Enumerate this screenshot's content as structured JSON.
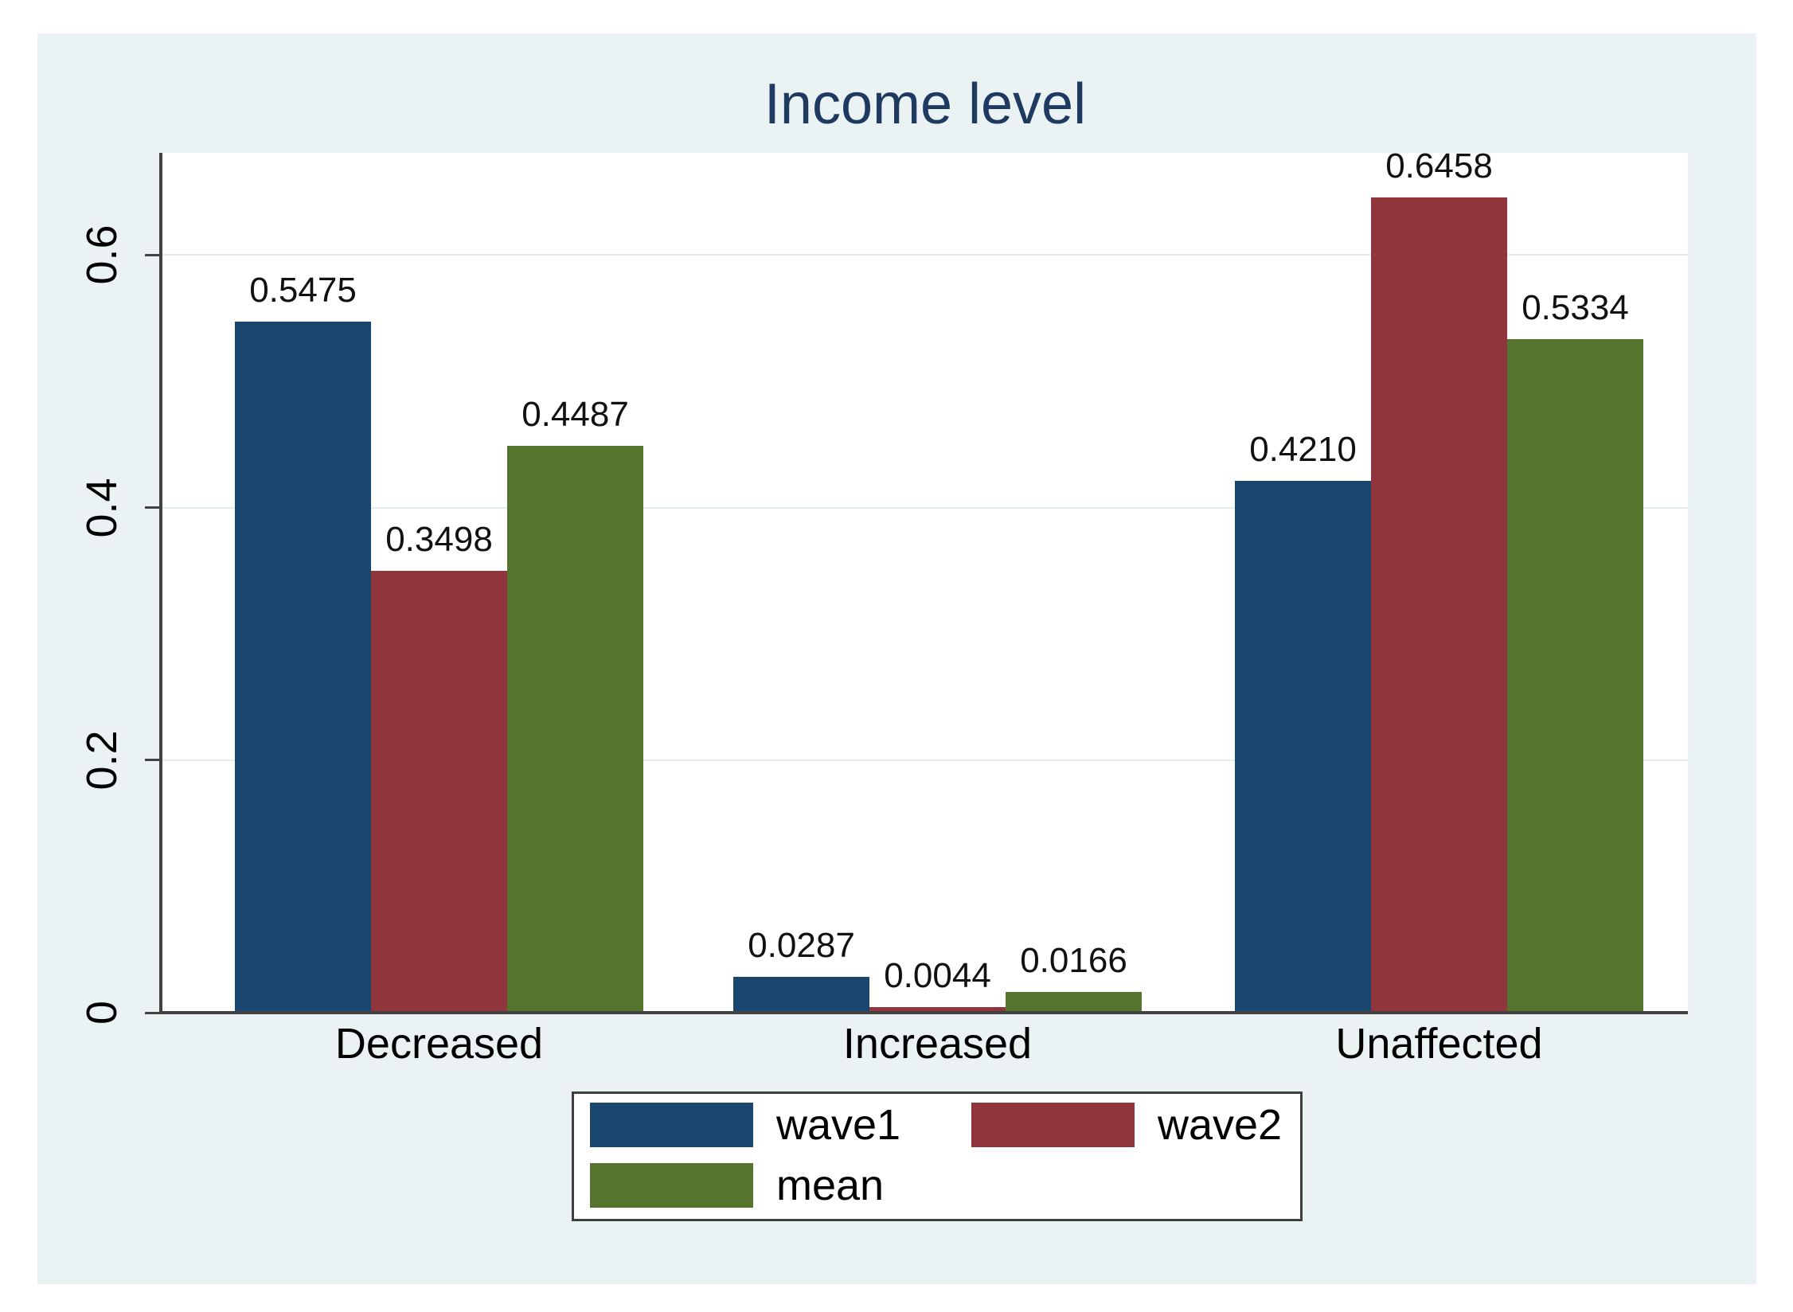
{
  "chart_data": {
    "type": "bar",
    "title": "Income level",
    "categories": [
      "Decreased",
      "Increased",
      "Unaffected"
    ],
    "series": [
      {
        "name": "wave1",
        "color": "#1a476f",
        "values": [
          0.5475,
          0.0287,
          0.421
        ],
        "labels": [
          "0.5475",
          "0.0287",
          "0.4210"
        ]
      },
      {
        "name": "wave2",
        "color": "#90353b",
        "values": [
          0.3498,
          0.0044,
          0.6458
        ],
        "labels": [
          "0.3498",
          "0.0044",
          "0.6458"
        ]
      },
      {
        "name": "mean",
        "color": "#55752f",
        "values": [
          0.4487,
          0.0166,
          0.5334
        ],
        "labels": [
          "0.4487",
          "0.0166",
          "0.5334"
        ]
      }
    ],
    "y_ticks": [
      {
        "value": 0,
        "label": "0"
      },
      {
        "value": 0.2,
        "label": "0.2"
      },
      {
        "value": 0.4,
        "label": "0.4"
      },
      {
        "value": 0.6,
        "label": "0.6"
      }
    ],
    "ylim": [
      0,
      0.681
    ],
    "grid": true,
    "legend_position": "bottom",
    "colors": {
      "canvas_background": "#eaf2f3",
      "plot_background": "#ffffff",
      "title": "#1f3a60",
      "axis": "#424242",
      "gridline": "#e4eef1",
      "text": "#000000"
    }
  }
}
